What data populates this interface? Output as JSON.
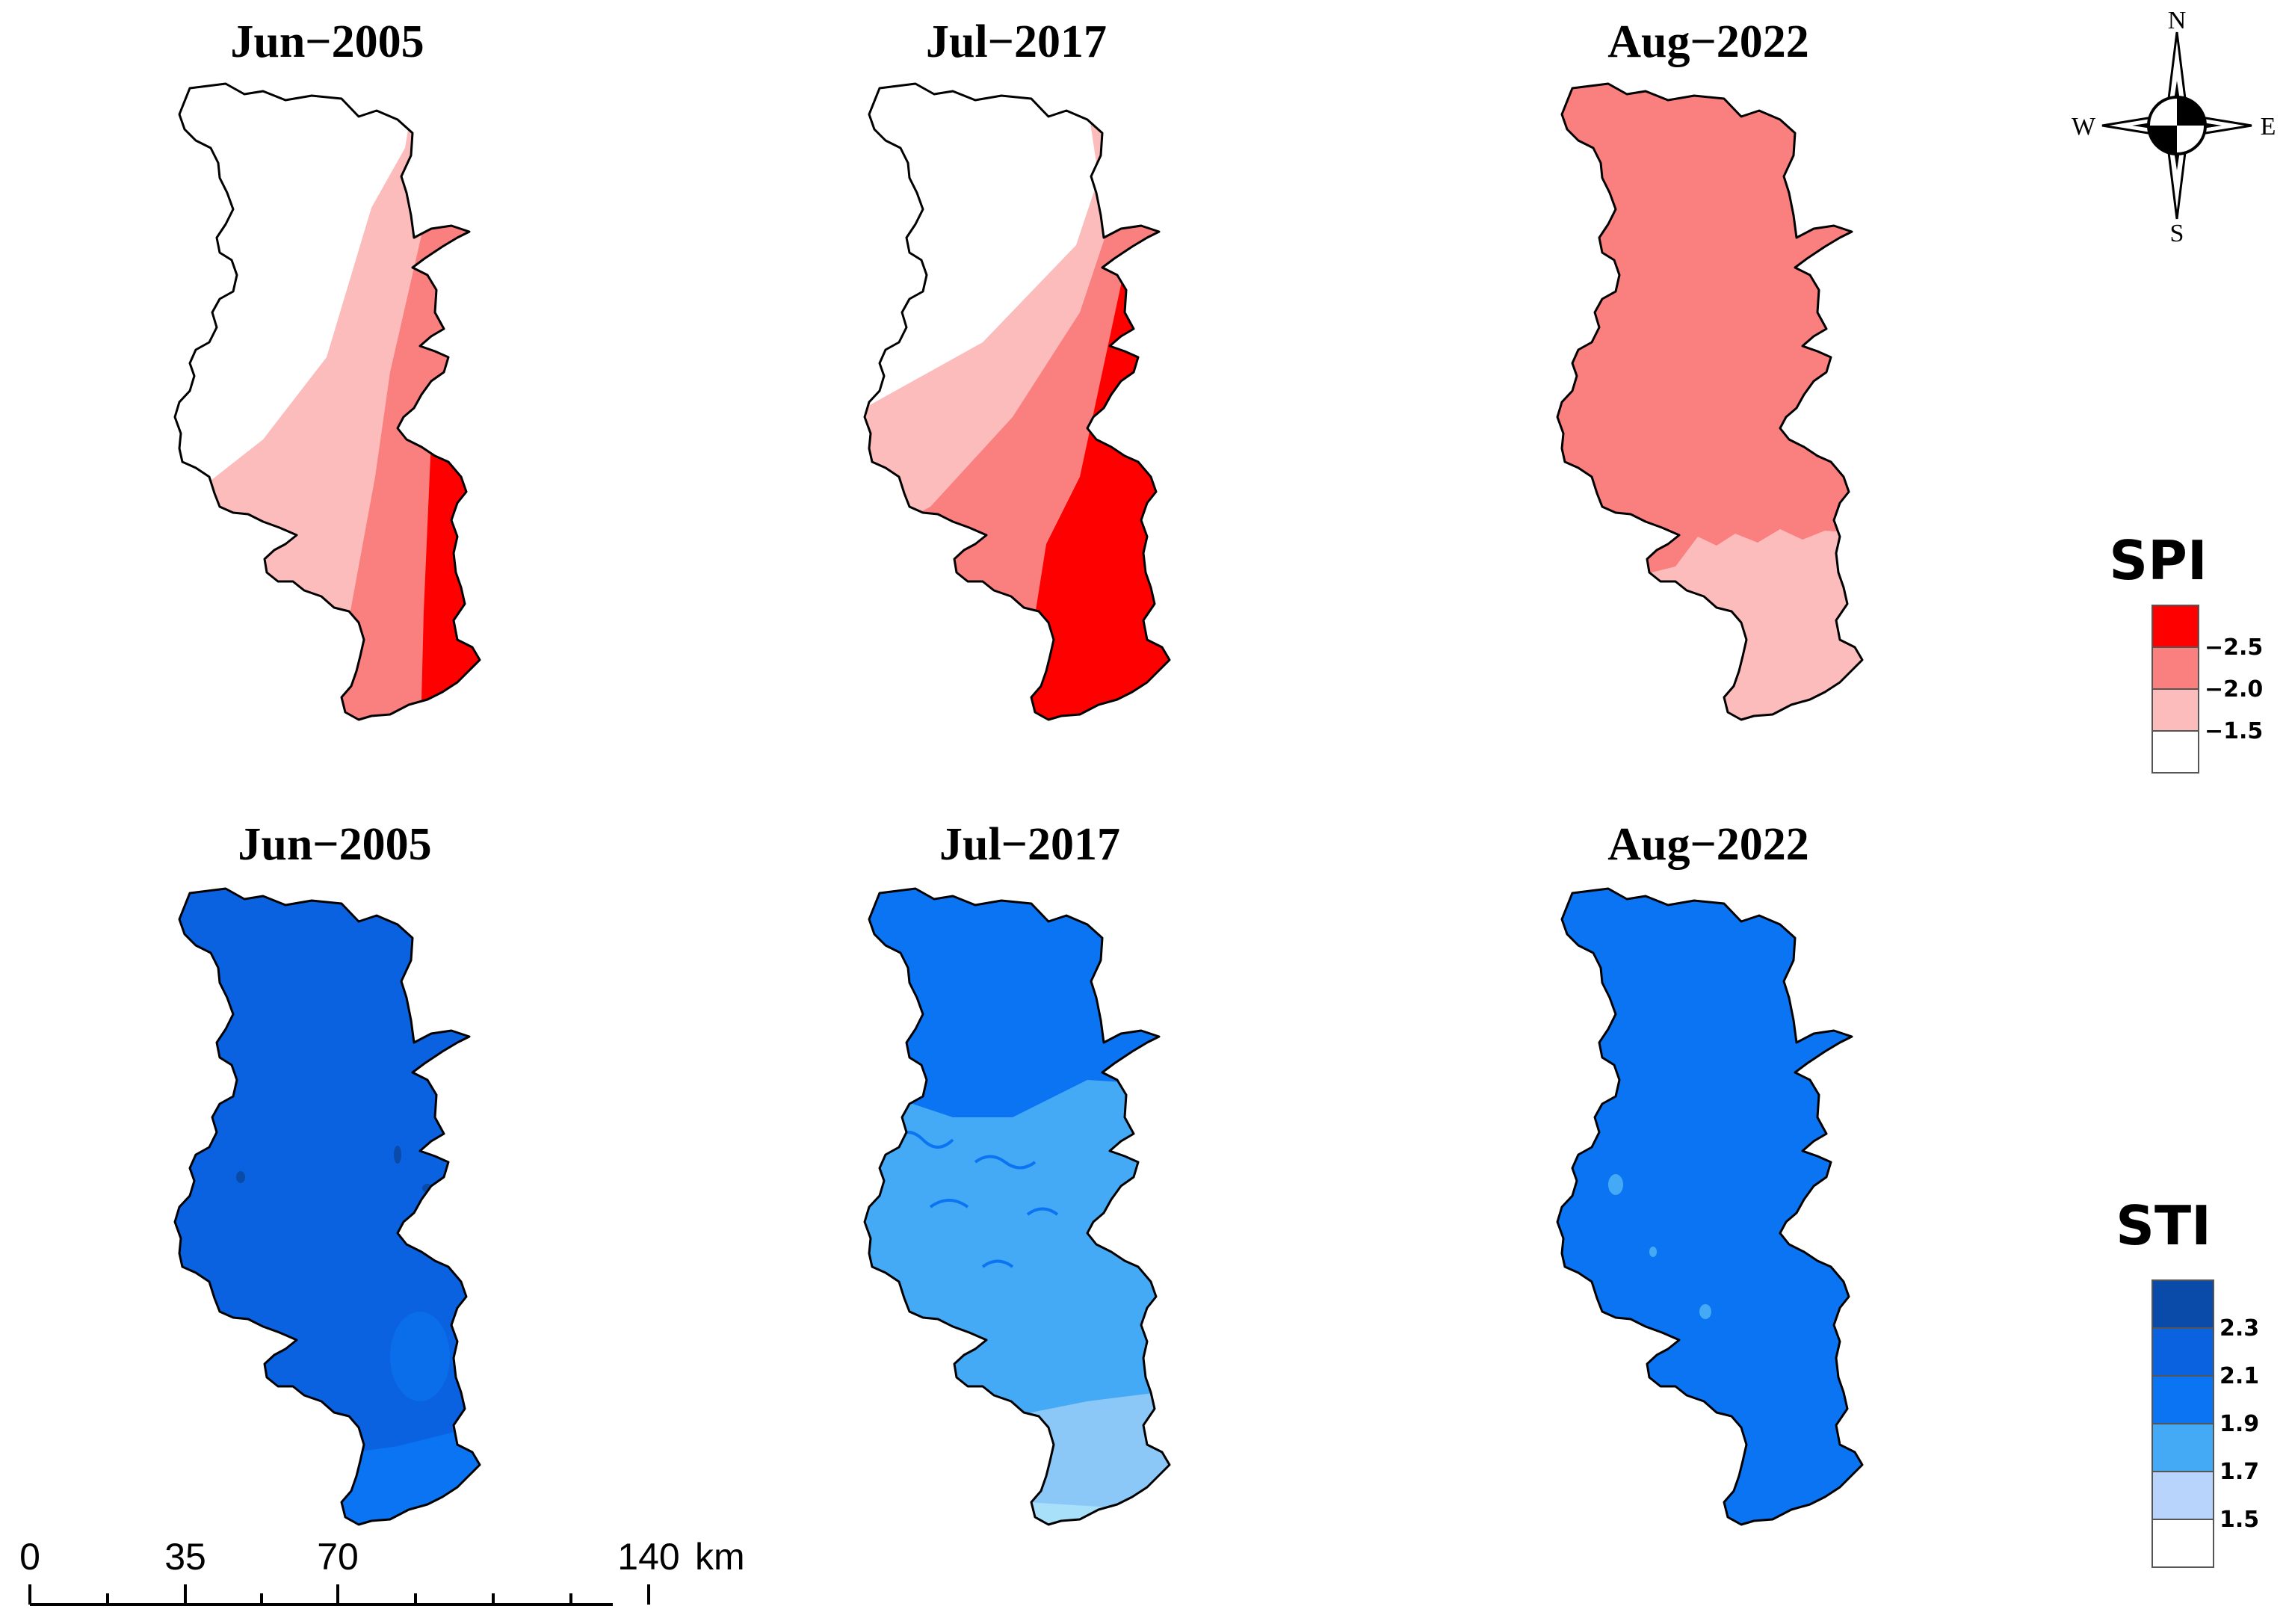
{
  "spi_panels": [
    {
      "title": "Jun−2005"
    },
    {
      "title": "Jul−2017"
    },
    {
      "title": "Aug−2022"
    }
  ],
  "sti_panels": [
    {
      "title": "Jun−2005"
    },
    {
      "title": "Jul−2017"
    },
    {
      "title": "Aug−2022"
    }
  ],
  "spi_legend": {
    "title": "SPI",
    "classes": [
      {
        "label": "−2.5",
        "color": "#ff0000"
      },
      {
        "label": "−2.0",
        "color": "#fa7f7f"
      },
      {
        "label": "−1.5",
        "color": "#fcbcbc"
      },
      {
        "label": "",
        "color": "#ffffff"
      }
    ]
  },
  "sti_legend": {
    "title": "STI",
    "classes": [
      {
        "label": "2.3",
        "color": "#0a4aa8"
      },
      {
        "label": "2.1",
        "color": "#0a62e0"
      },
      {
        "label": "1.9",
        "color": "#0a74f2"
      },
      {
        "label": "1.7",
        "color": "#45aaf5"
      },
      {
        "label": "1.5",
        "color": "#b8d4fc"
      },
      {
        "label": "",
        "color": "#ffffff"
      }
    ]
  },
  "compass": {
    "n": "N",
    "s": "S",
    "e": "E",
    "w": "W"
  },
  "scale_bar": {
    "ticks": [
      "0",
      "35",
      "70",
      "140"
    ],
    "unit": "km"
  },
  "colors": {
    "spi_severe": "#ff0000",
    "spi_moderate": "#fa7f7f",
    "spi_light": "#fcbcbc",
    "sti_darkest": "#0a4aa8",
    "sti_dark": "#0a62e0",
    "sti_mid": "#0a74f2",
    "sti_light": "#45aaf5",
    "sti_lightest": "#b8d4fc",
    "sti_palest": "#a8e0fa"
  }
}
